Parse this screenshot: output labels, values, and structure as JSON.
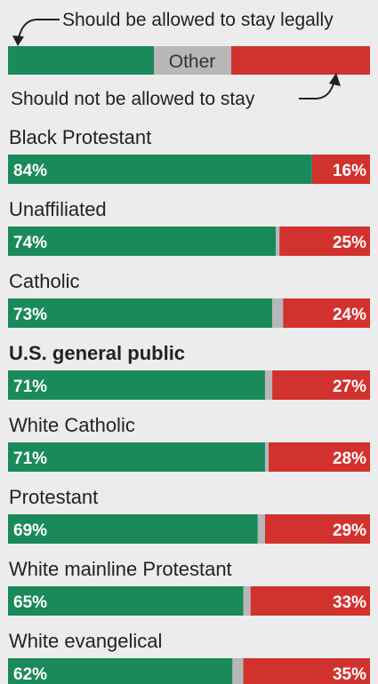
{
  "chart_data": {
    "type": "bar",
    "stacked": true,
    "orientation": "horizontal",
    "legend": {
      "top_label": "Should be allowed to stay legally",
      "middle_label": "Other",
      "bottom_label": "Should not be allowed to stay"
    },
    "colors": {
      "stay": "#1a8a5a",
      "other": "#b7b7b7",
      "not_stay": "#d1322d"
    },
    "categories": [
      "Black Protestant",
      "Unaffiliated",
      "Catholic",
      "U.S. general public",
      "White Catholic",
      "Protestant",
      "White mainline Protestant",
      "White evangelical"
    ],
    "highlighted_category": "U.S. general public",
    "series": [
      {
        "name": "Should be allowed to stay legally",
        "values": [
          84,
          74,
          73,
          71,
          71,
          69,
          65,
          62
        ],
        "labels": [
          "84%",
          "74%",
          "73%",
          "71%",
          "71%",
          "69%",
          "65%",
          "62%"
        ]
      },
      {
        "name": "Other",
        "values": [
          0,
          1,
          3,
          2,
          1,
          2,
          2,
          3
        ]
      },
      {
        "name": "Should not be allowed to stay",
        "values": [
          16,
          25,
          24,
          27,
          28,
          29,
          33,
          35
        ],
        "labels": [
          "16%",
          "25%",
          "24%",
          "27%",
          "28%",
          "29%",
          "33%",
          "35%"
        ]
      }
    ]
  }
}
